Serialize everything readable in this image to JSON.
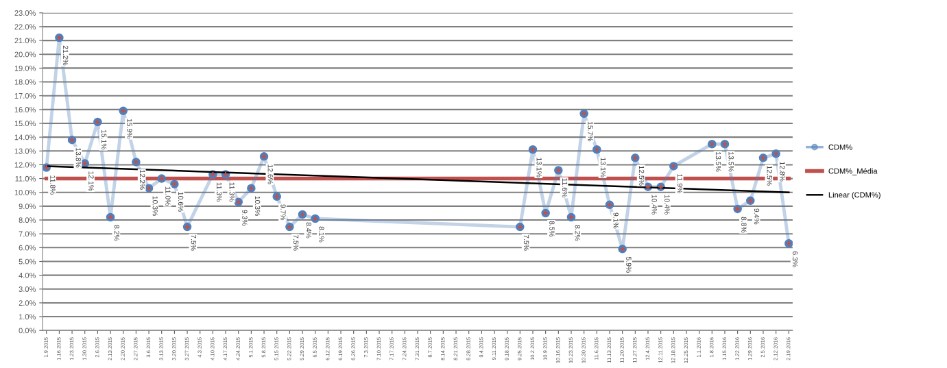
{
  "chart_data": {
    "type": "line",
    "categories": [
      "1.9.2015",
      "1.16.2015",
      "1.23.2015",
      "1.30.2015",
      "2.6.2015",
      "2.13.2015",
      "2.20.2015",
      "2.27.2015",
      "3.6.2015",
      "3.13.2015",
      "3.20.2015",
      "3.27.2015",
      "4.3.2015",
      "4.10.2015",
      "4.17.2015",
      "4.24.2015",
      "5.1.2015",
      "5.8.2015",
      "5.15.2015",
      "5.22.2015",
      "5.29.2015",
      "6.5.2015",
      "6.12.2015",
      "6.19.2015",
      "6.26.2015",
      "7.3.2015",
      "7.10.2015",
      "7.17.2015",
      "7.24.2015",
      "7.31.2015",
      "8.7.2015",
      "8.14.2015",
      "8.21.2015",
      "8.28.2015",
      "9.4.2015",
      "9.11.2015",
      "9.18.2015",
      "9.25.2015",
      "10.2.2015",
      "10.9.2015",
      "10.16.2015",
      "10.23.2015",
      "10.30.2015",
      "11.6.2015",
      "11.13.2015",
      "11.20.2015",
      "11.27.2015",
      "12.4.2015",
      "12.11.2015",
      "12.18.2015",
      "12.25.2015",
      "1.1.2016",
      "1.8.2016",
      "1.15.2016",
      "1.22.2016",
      "1.29.2016",
      "2.5.2016",
      "2.12.2016",
      "2.19.2016"
    ],
    "series": [
      {
        "name": "CDM%",
        "color": "#4f81bd",
        "marker": "circle",
        "values": [
          11.8,
          21.2,
          13.8,
          12.1,
          15.1,
          8.2,
          15.9,
          12.2,
          10.3,
          11.0,
          10.6,
          7.5,
          null,
          11.3,
          11.3,
          9.3,
          10.3,
          12.6,
          9.7,
          7.5,
          8.4,
          8.1,
          null,
          null,
          null,
          null,
          null,
          null,
          null,
          null,
          null,
          null,
          null,
          null,
          null,
          null,
          null,
          7.5,
          13.1,
          8.5,
          11.6,
          8.2,
          15.7,
          13.1,
          9.1,
          5.9,
          12.5,
          10.4,
          10.4,
          11.9,
          null,
          null,
          13.5,
          13.5,
          8.8,
          9.4,
          12.5,
          12.8,
          6.3
        ],
        "value_labels": [
          "11.8%",
          "21.2%",
          "13.8%",
          "12.1%",
          "15.1%",
          "8.2%",
          "15.9%",
          "12.2%",
          "10.3%",
          "11.0%",
          "10.6%",
          "7.5%",
          null,
          "11.3%",
          "11.3%",
          "9.3%",
          "10.3%",
          "12.6%",
          "9.7%",
          "7.5%",
          "8.4%",
          "8.1%",
          null,
          null,
          null,
          null,
          null,
          null,
          null,
          null,
          null,
          null,
          null,
          null,
          null,
          null,
          null,
          "7.5%",
          "13.1%",
          "8.5%",
          "11.6%",
          "8.2%",
          "15.7%",
          "13.1%",
          "9.1%",
          "5.9%",
          "12.5%",
          "10.4%",
          "10.4%",
          "11.9%",
          null,
          null,
          "13.5%",
          "13.5%",
          "8.8%",
          "9.4%",
          "12.5%",
          "12.8%",
          "6.3%"
        ]
      },
      {
        "name": "CDM%_Média",
        "color": "#c0504d",
        "x": [
          "1.9.2015",
          "2.19.2016"
        ],
        "values": [
          11.0,
          11.0
        ]
      },
      {
        "name": "Linear (CDM%)",
        "color": "#000000",
        "x": [
          "1.9.2015",
          "2.19.2016"
        ],
        "values": [
          11.9,
          10.0
        ]
      }
    ],
    "ylim": [
      0,
      23
    ],
    "yticks": [
      {
        "value": 0,
        "label": "0.0%"
      },
      {
        "value": 1,
        "label": "1.0%"
      },
      {
        "value": 2,
        "label": "2.0%"
      },
      {
        "value": 3,
        "label": "3.0%"
      },
      {
        "value": 4,
        "label": "4.0%"
      },
      {
        "value": 5,
        "label": "5.0%"
      },
      {
        "value": 6,
        "label": "6.0%"
      },
      {
        "value": 7,
        "label": "7.0%"
      },
      {
        "value": 8,
        "label": "8.0%"
      },
      {
        "value": 9,
        "label": "9.0%"
      },
      {
        "value": 10,
        "label": "10.0%"
      },
      {
        "value": 11,
        "label": "11.0%"
      },
      {
        "value": 12,
        "label": "12.0%"
      },
      {
        "value": 13,
        "label": "13.0%"
      },
      {
        "value": 14,
        "label": "14.0%"
      },
      {
        "value": 15,
        "label": "15.0%"
      },
      {
        "value": 16,
        "label": "16.0%"
      },
      {
        "value": 17,
        "label": "17.0%"
      },
      {
        "value": 18,
        "label": "18.0%"
      },
      {
        "value": 19,
        "label": "19.0%"
      },
      {
        "value": 20,
        "label": "20.0%"
      },
      {
        "value": 21,
        "label": "21.0%"
      },
      {
        "value": 22,
        "label": "22.0%"
      },
      {
        "value": 23,
        "label": "23.0%"
      }
    ],
    "grid": "y",
    "legend": "right"
  }
}
